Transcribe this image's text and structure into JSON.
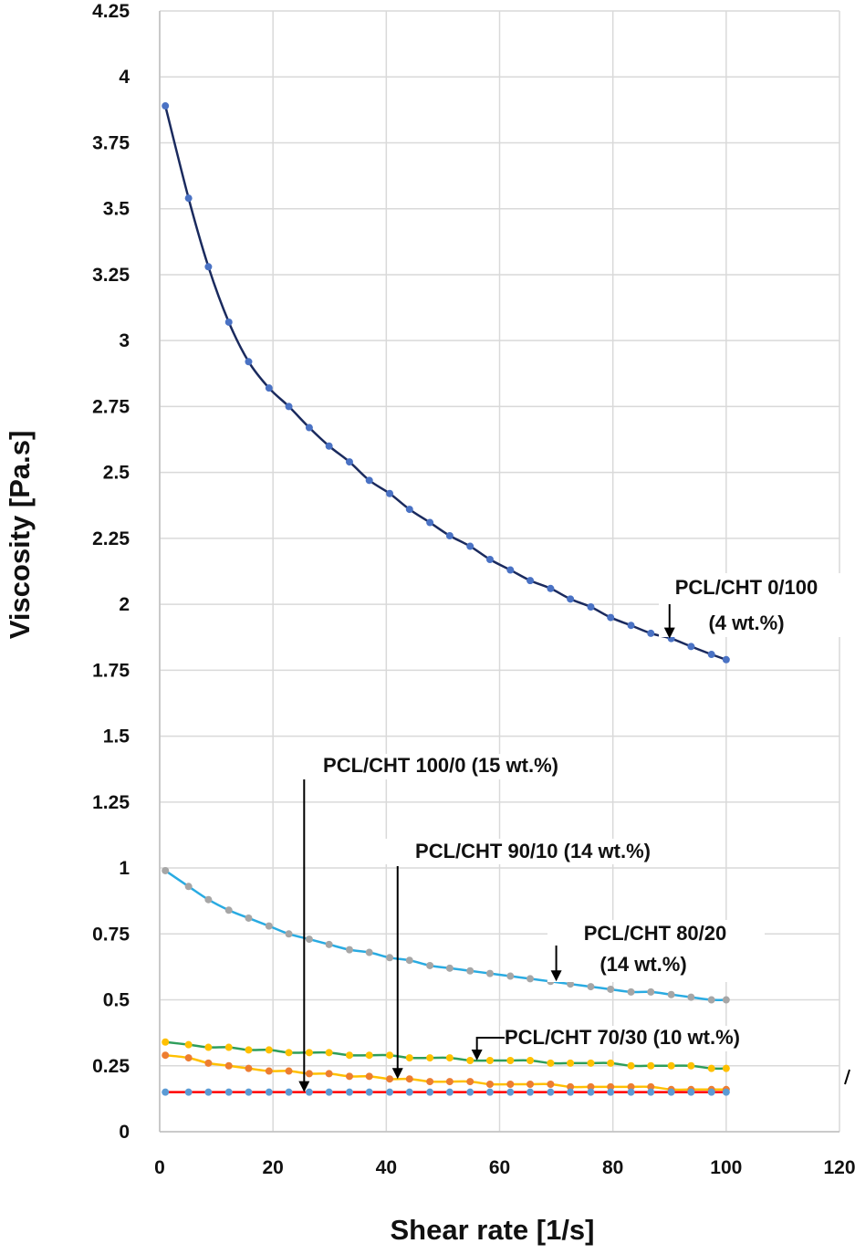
{
  "chart_data": {
    "type": "line",
    "title": "",
    "xlabel": "Shear rate [1/s]",
    "ylabel": "Viscosity [Pa.s]",
    "xlim": [
      0,
      120
    ],
    "ylim": [
      0,
      4.25
    ],
    "x_ticks": [
      "0",
      "20",
      "40",
      "60",
      "80",
      "100",
      "120"
    ],
    "y_ticks": [
      "0",
      "0.25",
      "0.5",
      "0.75",
      "1",
      "1.25",
      "1.5",
      "1.75",
      "2",
      "2.25",
      "2.5",
      "2.75",
      "3",
      "3.25",
      "3.5",
      "3.75",
      "4",
      "4.25"
    ],
    "grid": "vertical and horizontal major gridlines",
    "x": [
      1,
      5.1,
      8.6,
      12.2,
      15.7,
      19.3,
      22.8,
      26.4,
      29.9,
      33.5,
      37,
      40.6,
      44.1,
      47.7,
      51.2,
      54.8,
      58.3,
      61.9,
      65.4,
      69,
      72.5,
      76.1,
      79.6,
      83.2,
      86.7,
      90.3,
      93.8,
      97.4,
      100
    ],
    "series": [
      {
        "line_color": "#1a2a5e",
        "marker_color": "#4a72c4",
        "values": [
          3.89,
          3.54,
          3.28,
          3.07,
          2.92,
          2.82,
          2.75,
          2.67,
          2.6,
          2.54,
          2.47,
          2.42,
          2.36,
          2.31,
          2.26,
          2.22,
          2.17,
          2.13,
          2.09,
          2.06,
          2.02,
          1.99,
          1.95,
          1.92,
          1.89,
          1.87,
          1.84,
          1.81,
          1.79
        ]
      },
      {
        "line_color": "#29abe2",
        "marker_color": "#a6a6a6",
        "values": [
          0.99,
          0.93,
          0.88,
          0.84,
          0.81,
          0.78,
          0.75,
          0.73,
          0.71,
          0.69,
          0.68,
          0.66,
          0.65,
          0.63,
          0.62,
          0.61,
          0.6,
          0.59,
          0.58,
          0.57,
          0.56,
          0.55,
          0.54,
          0.53,
          0.53,
          0.52,
          0.51,
          0.5,
          0.5
        ]
      },
      {
        "line_color": "#2e9e5b",
        "marker_color": "#ffc000",
        "values": [
          0.34,
          0.33,
          0.32,
          0.32,
          0.31,
          0.31,
          0.3,
          0.3,
          0.3,
          0.29,
          0.29,
          0.29,
          0.28,
          0.28,
          0.28,
          0.27,
          0.27,
          0.27,
          0.27,
          0.26,
          0.26,
          0.26,
          0.26,
          0.25,
          0.25,
          0.25,
          0.25,
          0.24,
          0.24
        ]
      },
      {
        "line_color": "#ffc000",
        "marker_color": "#ed7d31",
        "values": [
          0.29,
          0.28,
          0.26,
          0.25,
          0.24,
          0.23,
          0.23,
          0.22,
          0.22,
          0.21,
          0.21,
          0.2,
          0.2,
          0.19,
          0.19,
          0.19,
          0.18,
          0.18,
          0.18,
          0.18,
          0.17,
          0.17,
          0.17,
          0.17,
          0.17,
          0.16,
          0.16,
          0.16,
          0.16
        ]
      },
      {
        "line_color": "#ff0000",
        "marker_color": "#5b9bd5",
        "values": [
          0.15,
          0.15,
          0.15,
          0.15,
          0.15,
          0.15,
          0.15,
          0.15,
          0.15,
          0.15,
          0.15,
          0.15,
          0.15,
          0.15,
          0.15,
          0.15,
          0.15,
          0.15,
          0.15,
          0.15,
          0.15,
          0.15,
          0.15,
          0.15,
          0.15,
          0.15,
          0.15,
          0.15,
          0.15
        ]
      }
    ],
    "annotations": [
      {
        "lines": [
          "PCL/CHT 0/100",
          "(4 wt.%)"
        ],
        "arrow_to": [
          90,
          1.87
        ]
      },
      {
        "lines": [
          "PCL/CHT 100/0 (15 wt.%)"
        ],
        "arrow_to": [
          25.5,
          0.15
        ]
      },
      {
        "lines": [
          "PCL/CHT 90/10 (14 wt.%)"
        ],
        "arrow_to": [
          42,
          0.2
        ]
      },
      {
        "lines": [
          "PCL/CHT 80/20",
          "(14 wt.%)"
        ],
        "arrow_to": [
          70,
          0.57
        ]
      },
      {
        "lines": [
          "PCL/CHT 70/30 (10 wt.%)"
        ],
        "arrow_to": [
          56,
          0.27
        ]
      }
    ]
  }
}
